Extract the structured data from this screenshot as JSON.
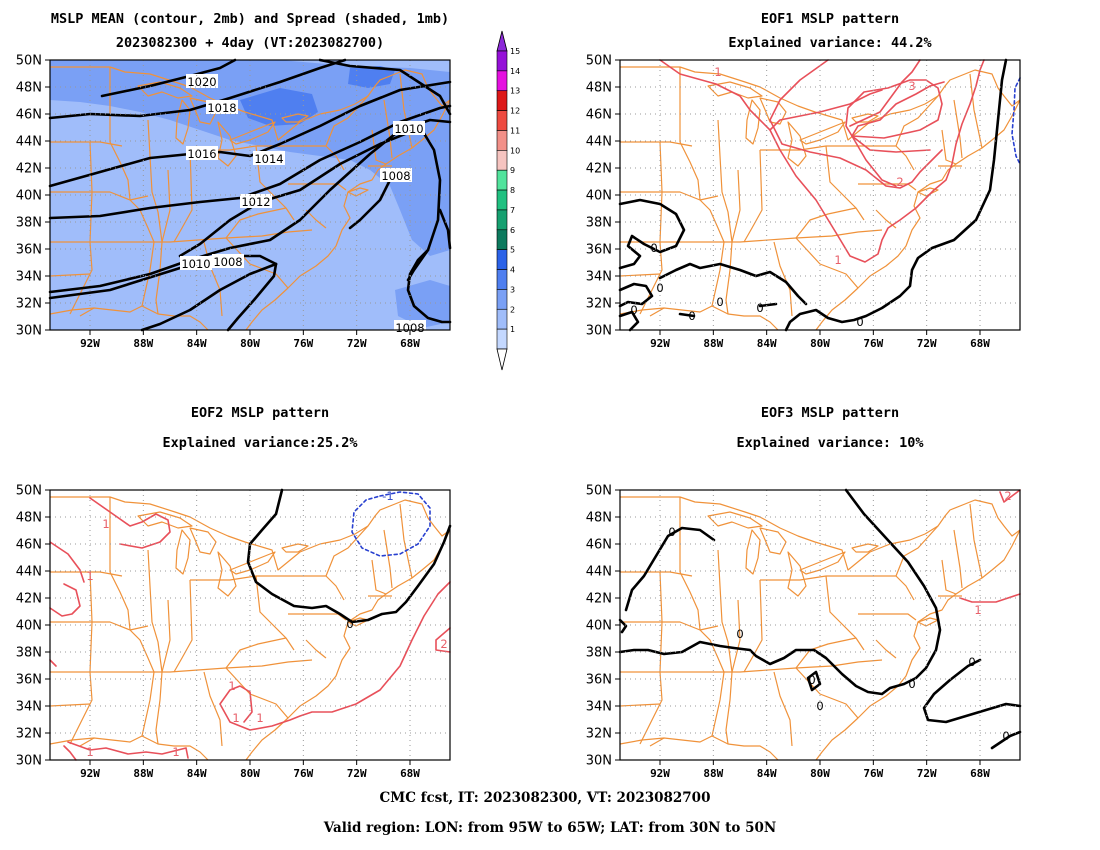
{
  "figure": {
    "footer_line1": "CMC fcst, IT: 2023082300, VT: 2023082700",
    "footer_line2": "Valid region: LON: from 95W to 65W; LAT: from 30N to 50N"
  },
  "axes": {
    "lon_ticks": [
      "92W",
      "88W",
      "84W",
      "80W",
      "76W",
      "72W",
      "68W"
    ],
    "lat_ticks": [
      "50N",
      "48N",
      "46N",
      "44N",
      "42N",
      "40N",
      "38N",
      "36N",
      "34N",
      "32N",
      "30N"
    ]
  },
  "colors": {
    "map_lines": "#f0923a",
    "contour": "#000000",
    "positive": "#e8505a",
    "negative": "#2840d0"
  },
  "panels": {
    "mean": {
      "title_line1": "MSLP MEAN (contour, 2mb) and Spread (shaded, 1mb)",
      "title_line2": "2023082300 + 4day (VT:2023082700)",
      "contour_labels": [
        "1020",
        "1018",
        "1016",
        "1014",
        "1012",
        "1010",
        "1010",
        "1008",
        "1008",
        "1008"
      ]
    },
    "eof1": {
      "title_line1": "EOF1 MSLP pattern",
      "title_line2": "Explained variance: 44.2%",
      "labels_pos": [
        "1",
        "3",
        "2",
        "1"
      ],
      "labels_zero": [
        "0",
        "0",
        "0",
        "0",
        "0",
        "0",
        "0"
      ]
    },
    "eof2": {
      "title_line1": "EOF2 MSLP pattern",
      "title_line2": "Explained variance:25.2%",
      "labels_pos": [
        "1",
        "1",
        "1",
        "1",
        "1",
        "1",
        "1",
        "2"
      ],
      "labels_neg": [
        "-1"
      ],
      "labels_zero": [
        "0"
      ]
    },
    "eof3": {
      "title_line1": "EOF3 MSLP pattern",
      "title_line2": "Explained variance: 10%",
      "labels_pos": [
        "2",
        "1"
      ],
      "labels_zero": [
        "0",
        "0",
        "0",
        "0",
        "0",
        "0",
        "0"
      ]
    }
  },
  "colorbar": {
    "levels": [
      "1",
      "2",
      "3",
      "4",
      "5",
      "6",
      "7",
      "8",
      "9",
      "10",
      "11",
      "12",
      "13",
      "14",
      "15"
    ],
    "colors": [
      "#c4d8ff",
      "#a0bdfa",
      "#7aa0f5",
      "#4f7ff0",
      "#2b62e8",
      "#0d7a5e",
      "#16a070",
      "#20c080",
      "#52e39c",
      "#f6c4c0",
      "#f29088",
      "#ee4a40",
      "#dd1818",
      "#e510e0",
      "#9510d8"
    ],
    "under_color": "#ffffff",
    "over_color": "#8c2ad8"
  },
  "chart_data": {
    "type": "map",
    "lon_range": [
      "95W",
      "65W"
    ],
    "lat_range": [
      "30N",
      "50N"
    ],
    "panels": [
      {
        "name": "MSLP MEAN",
        "isobars_mb": [
          1008,
          1010,
          1012,
          1014,
          1016,
          1018,
          1020
        ],
        "contour_interval_mb": 2,
        "spread_shading_mb": [
          1,
          15
        ]
      },
      {
        "name": "EOF1",
        "explained_variance_pct": 44.2,
        "contour_values": [
          0,
          1,
          2,
          3
        ]
      },
      {
        "name": "EOF2",
        "explained_variance_pct": 25.2,
        "contour_values": [
          -1,
          0,
          1,
          2
        ]
      },
      {
        "name": "EOF3",
        "explained_variance_pct": 10,
        "contour_values": [
          0,
          1,
          2
        ]
      }
    ]
  }
}
